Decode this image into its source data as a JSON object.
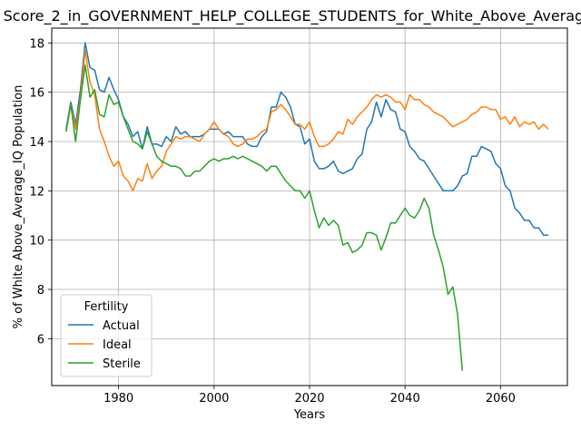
{
  "chart_data": {
    "type": "line",
    "title": "Score_2_in_GOVERNMENT_HELP_COLLEGE_STUDENTS_for_White_Above_Average_IQ",
    "xlabel": "Years",
    "ylabel": "% of White Above_Average_IQ Population",
    "xlim": [
      1966,
      2074
    ],
    "ylim": [
      4.1,
      18.6
    ],
    "xticks": [
      1980,
      2000,
      2020,
      2040,
      2060
    ],
    "yticks": [
      6,
      8,
      10,
      12,
      14,
      16,
      18
    ],
    "grid": true,
    "legend": {
      "title": "Fertility",
      "position": "lower-left"
    },
    "series": [
      {
        "name": "Actual",
        "color": "#1f77b4",
        "x": [
          1969,
          1970,
          1971,
          1972,
          1973,
          1974,
          1975,
          1976,
          1977,
          1978,
          1979,
          1980,
          1981,
          1982,
          1983,
          1984,
          1985,
          1986,
          1987,
          1988,
          1989,
          1990,
          1991,
          1992,
          1993,
          1994,
          1995,
          1996,
          1997,
          1998,
          1999,
          2000,
          2001,
          2002,
          2003,
          2004,
          2005,
          2006,
          2007,
          2008,
          2009,
          2010,
          2011,
          2012,
          2013,
          2014,
          2015,
          2016,
          2017,
          2018,
          2019,
          2020,
          2021,
          2022,
          2023,
          2024,
          2025,
          2026,
          2027,
          2028,
          2029,
          2030,
          2031,
          2032,
          2033,
          2034,
          2035,
          2036,
          2037,
          2038,
          2039,
          2040,
          2041,
          2042,
          2043,
          2044,
          2045,
          2046,
          2047,
          2048,
          2049,
          2050,
          2051,
          2052,
          2053,
          2054,
          2055,
          2056,
          2057,
          2058,
          2059,
          2060,
          2061,
          2062,
          2063,
          2064,
          2065,
          2066,
          2067,
          2068,
          2069,
          2070
        ],
        "values": [
          14.5,
          15.6,
          14.7,
          16.1,
          18.0,
          17.0,
          16.9,
          16.1,
          16.0,
          16.6,
          16.1,
          15.7,
          15.0,
          14.7,
          14.2,
          14.4,
          13.7,
          14.6,
          13.9,
          13.9,
          13.8,
          14.2,
          14.0,
          14.6,
          14.3,
          14.4,
          14.2,
          14.2,
          14.2,
          14.3,
          14.5,
          14.5,
          14.5,
          14.3,
          14.4,
          14.2,
          14.2,
          14.2,
          13.9,
          13.8,
          13.8,
          14.2,
          14.4,
          15.4,
          15.4,
          16.0,
          15.8,
          15.4,
          14.7,
          14.6,
          13.9,
          14.1,
          13.2,
          12.9,
          12.9,
          13.0,
          13.2,
          12.8,
          12.7,
          12.8,
          12.9,
          13.3,
          13.5,
          14.5,
          14.8,
          15.6,
          15.0,
          15.7,
          15.3,
          15.2,
          14.5,
          14.4,
          13.8,
          13.6,
          13.3,
          13.2,
          12.9,
          12.6,
          12.3,
          12.0,
          12.0,
          12.0,
          12.2,
          12.6,
          12.7,
          13.4,
          13.4,
          13.8,
          13.7,
          13.6,
          13.1,
          12.9,
          12.2,
          12.0,
          11.3,
          11.1,
          10.8,
          10.8,
          10.5,
          10.5,
          10.2,
          10.2
        ]
      },
      {
        "name": "Ideal",
        "color": "#ff7f0e",
        "x": [
          1969,
          1970,
          1971,
          1972,
          1973,
          1974,
          1975,
          1976,
          1977,
          1978,
          1979,
          1980,
          1981,
          1982,
          1983,
          1984,
          1985,
          1986,
          1987,
          1988,
          1989,
          1990,
          1991,
          1992,
          1993,
          1994,
          1995,
          1996,
          1997,
          1998,
          1999,
          2000,
          2001,
          2002,
          2003,
          2004,
          2005,
          2006,
          2007,
          2008,
          2009,
          2010,
          2011,
          2012,
          2013,
          2014,
          2015,
          2016,
          2017,
          2018,
          2019,
          2020,
          2021,
          2022,
          2023,
          2024,
          2025,
          2026,
          2027,
          2028,
          2029,
          2030,
          2031,
          2032,
          2033,
          2034,
          2035,
          2036,
          2037,
          2038,
          2039,
          2040,
          2041,
          2042,
          2043,
          2044,
          2045,
          2046,
          2047,
          2048,
          2049,
          2050,
          2051,
          2052,
          2053,
          2054,
          2055,
          2056,
          2057,
          2058,
          2059,
          2060,
          2061,
          2062,
          2063,
          2064,
          2065,
          2066,
          2067,
          2068,
          2069,
          2070
        ],
        "values": [
          14.4,
          15.5,
          14.5,
          15.8,
          17.7,
          16.4,
          15.9,
          14.5,
          14.0,
          13.4,
          13.0,
          13.2,
          12.6,
          12.4,
          12.0,
          12.5,
          12.4,
          13.1,
          12.5,
          12.8,
          13.0,
          13.6,
          13.9,
          14.2,
          14.1,
          14.2,
          14.2,
          14.1,
          14.0,
          14.3,
          14.5,
          14.8,
          14.5,
          14.3,
          14.2,
          13.9,
          13.8,
          13.9,
          14.1,
          14.1,
          14.2,
          14.4,
          14.5,
          15.2,
          15.3,
          15.5,
          15.3,
          15.0,
          14.7,
          14.7,
          14.5,
          14.8,
          14.2,
          13.8,
          13.8,
          13.9,
          14.1,
          14.4,
          14.3,
          14.9,
          14.7,
          15.0,
          15.2,
          15.4,
          15.7,
          15.9,
          15.8,
          15.9,
          15.8,
          15.6,
          15.6,
          15.3,
          15.9,
          15.7,
          15.7,
          15.5,
          15.4,
          15.2,
          15.1,
          15.0,
          14.8,
          14.6,
          14.7,
          14.8,
          14.9,
          15.1,
          15.2,
          15.4,
          15.4,
          15.3,
          15.3,
          14.9,
          15.0,
          14.7,
          15.0,
          14.6,
          14.8,
          14.7,
          14.8,
          14.5,
          14.7,
          14.5
        ]
      },
      {
        "name": "Sterile",
        "color": "#2ca02c",
        "x": [
          1969,
          1970,
          1971,
          1972,
          1973,
          1974,
          1975,
          1976,
          1977,
          1978,
          1979,
          1980,
          1981,
          1982,
          1983,
          1984,
          1985,
          1986,
          1987,
          1988,
          1989,
          1990,
          1991,
          1992,
          1993,
          1994,
          1995,
          1996,
          1997,
          1998,
          1999,
          2000,
          2001,
          2002,
          2003,
          2004,
          2005,
          2006,
          2007,
          2008,
          2009,
          2010,
          2011,
          2012,
          2013,
          2014,
          2015,
          2016,
          2017,
          2018,
          2019,
          2020,
          2021,
          2022,
          2023,
          2024,
          2025,
          2026,
          2027,
          2028,
          2029,
          2030,
          2031,
          2032,
          2033,
          2034,
          2035,
          2036,
          2037,
          2038,
          2039,
          2040,
          2041,
          2042,
          2043,
          2044,
          2045,
          2046,
          2047,
          2048,
          2049,
          2050,
          2051,
          2052
        ],
        "values": [
          14.4,
          15.5,
          14.0,
          15.7,
          17.1,
          15.8,
          16.1,
          15.1,
          15.0,
          15.9,
          15.5,
          15.6,
          15.0,
          14.5,
          14.0,
          13.9,
          13.7,
          14.4,
          13.9,
          13.4,
          13.2,
          13.1,
          13.0,
          13.0,
          12.9,
          12.6,
          12.6,
          12.8,
          12.8,
          13.0,
          13.2,
          13.3,
          13.2,
          13.3,
          13.3,
          13.4,
          13.3,
          13.4,
          13.3,
          13.2,
          13.1,
          13.0,
          12.8,
          13.0,
          13.0,
          12.7,
          12.4,
          12.2,
          12.0,
          12.0,
          11.7,
          12.0,
          11.2,
          10.5,
          10.9,
          10.6,
          10.8,
          10.6,
          9.8,
          9.9,
          9.5,
          9.6,
          9.8,
          10.3,
          10.3,
          10.2,
          9.6,
          10.1,
          10.7,
          10.7,
          11.0,
          11.3,
          11.0,
          10.9,
          11.2,
          11.7,
          11.3,
          10.2,
          9.6,
          8.9,
          7.8,
          8.1,
          7.0,
          4.7
        ]
      }
    ]
  }
}
